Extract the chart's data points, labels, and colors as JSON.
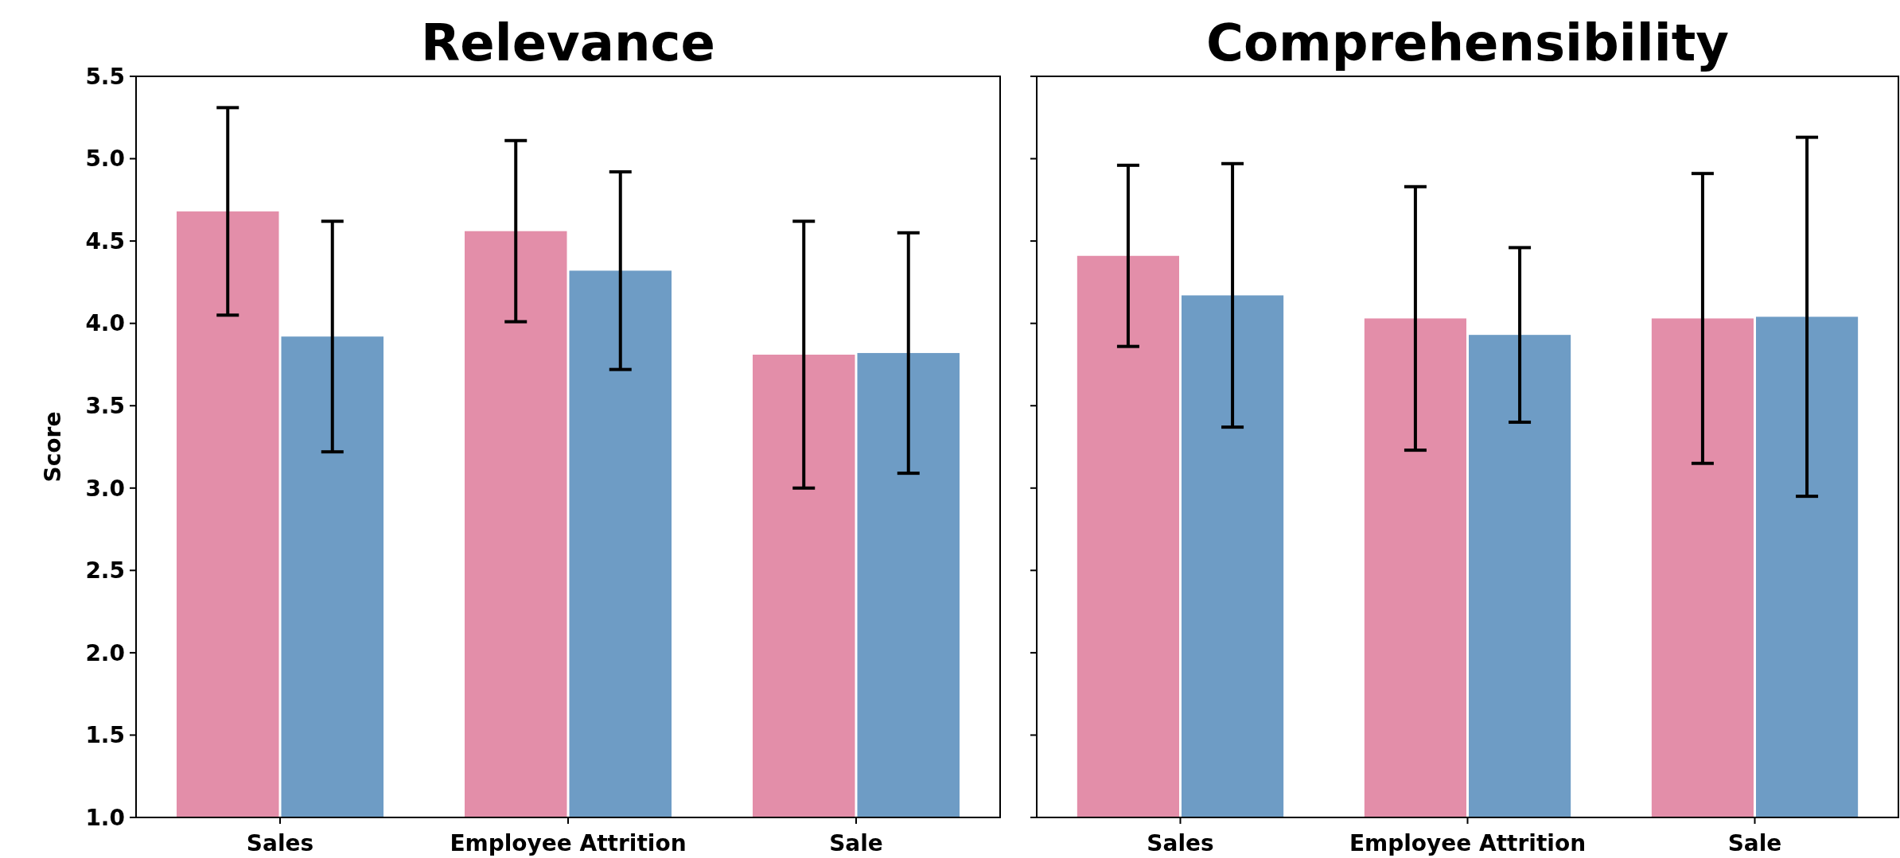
{
  "chart_data": [
    {
      "type": "bar",
      "title": "Relevance",
      "ylabel": "Score",
      "categories": [
        "Sales",
        "Employee Attrition",
        "Sale"
      ],
      "ylim": [
        1.0,
        5.5
      ],
      "yticks": [
        {
          "value": 1,
          "label": "1.0"
        },
        {
          "value": 1.5,
          "label": "1.5"
        },
        {
          "value": 2,
          "label": "2.0"
        },
        {
          "value": 2.5,
          "label": "2.5"
        },
        {
          "value": 3,
          "label": "3.0"
        },
        {
          "value": 3.5,
          "label": "3.5"
        },
        {
          "value": 4,
          "label": "4.0"
        },
        {
          "value": 4.5,
          "label": "4.5"
        },
        {
          "value": 5,
          "label": "5.0"
        },
        {
          "value": 5.5,
          "label": "5.5"
        }
      ],
      "series": [
        {
          "color": "#e38ea9",
          "values": [
            4.68,
            4.56,
            3.81
          ],
          "errors": [
            0.63,
            0.55,
            0.81
          ]
        },
        {
          "color": "#6e9cc5",
          "values": [
            3.92,
            4.32,
            3.82
          ],
          "errors": [
            0.7,
            0.6,
            0.73
          ]
        }
      ]
    },
    {
      "type": "bar",
      "title": "Comprehensibility",
      "categories": [
        "Sales",
        "Employee Attrition",
        "Sale"
      ],
      "ylim": [
        1.0,
        5.5
      ],
      "yticks": [
        {
          "value": 1,
          "label": null
        },
        {
          "value": 1.5,
          "label": null
        },
        {
          "value": 2,
          "label": null
        },
        {
          "value": 2.5,
          "label": null
        },
        {
          "value": 3,
          "label": null
        },
        {
          "value": 3.5,
          "label": null
        },
        {
          "value": 4,
          "label": null
        },
        {
          "value": 4.5,
          "label": null
        },
        {
          "value": 5,
          "label": null
        },
        {
          "value": 5.5,
          "label": null
        }
      ],
      "tick_labels": "x",
      "series": [
        {
          "color": "#e38ea9",
          "values": [
            4.41,
            4.03,
            4.03
          ],
          "errors": [
            0.55,
            0.8,
            0.88
          ]
        },
        {
          "color": "#6e9cc5",
          "values": [
            4.17,
            3.93,
            4.04
          ],
          "errors": [
            0.8,
            0.53,
            1.09
          ]
        }
      ]
    }
  ]
}
